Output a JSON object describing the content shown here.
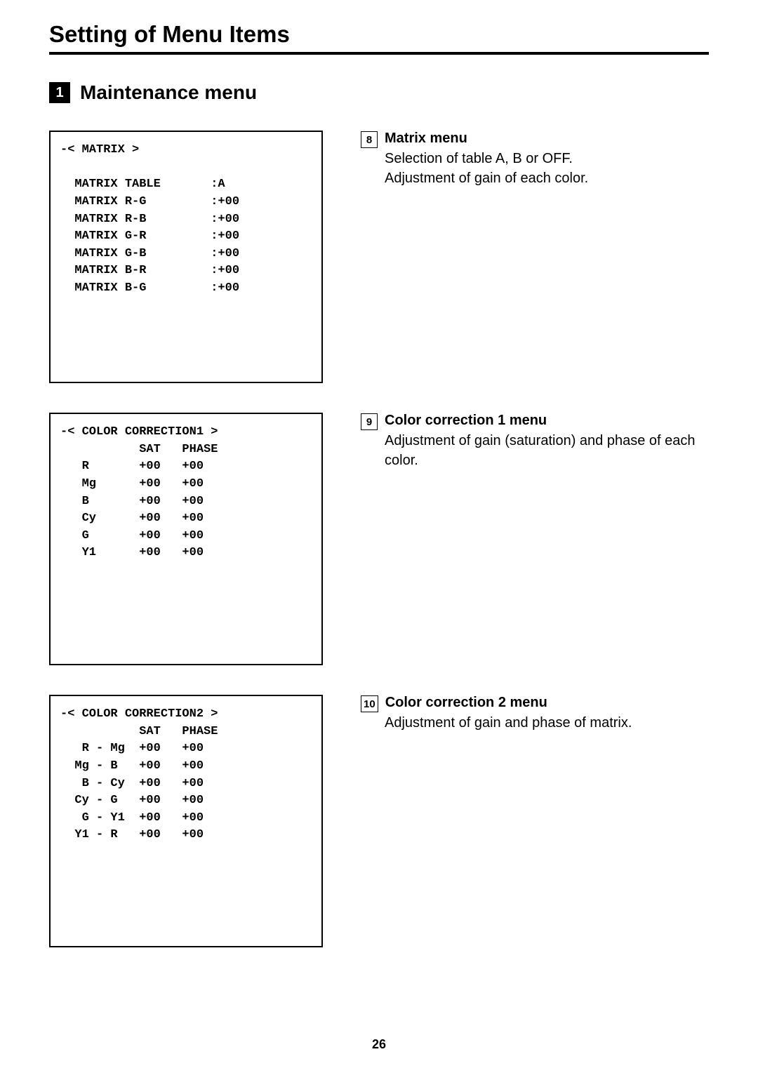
{
  "page_title": "Setting of Menu Items",
  "section": {
    "number": "1",
    "title": "Maintenance menu"
  },
  "page_number": "26",
  "blocks": [
    {
      "menu_text": "-< MATRIX >\n\n  MATRIX TABLE       :A\n  MATRIX R-G         :+00\n  MATRIX R-B         :+00\n  MATRIX G-R         :+00\n  MATRIX G-B         :+00\n  MATRIX B-R         :+00\n  MATRIX B-G         :+00",
      "num": "8",
      "title": "Matrix menu",
      "body": "Selection of table A, B or OFF.\nAdjustment of gain of each color."
    },
    {
      "menu_text": "-< COLOR CORRECTION1 >\n           SAT   PHASE\n   R       +00   +00\n   Mg      +00   +00\n   B       +00   +00\n   Cy      +00   +00\n   G       +00   +00\n   Y1      +00   +00",
      "num": "9",
      "title": "Color correction 1 menu",
      "body": "Adjustment of gain (saturation) and phase of each color."
    },
    {
      "menu_text": "-< COLOR CORRECTION2 >\n           SAT   PHASE\n   R - Mg  +00   +00\n  Mg - B   +00   +00\n   B - Cy  +00   +00\n  Cy - G   +00   +00\n   G - Y1  +00   +00\n  Y1 - R   +00   +00",
      "num": "10",
      "title": "Color correction 2 menu",
      "body": "Adjustment of gain and phase of matrix."
    }
  ]
}
